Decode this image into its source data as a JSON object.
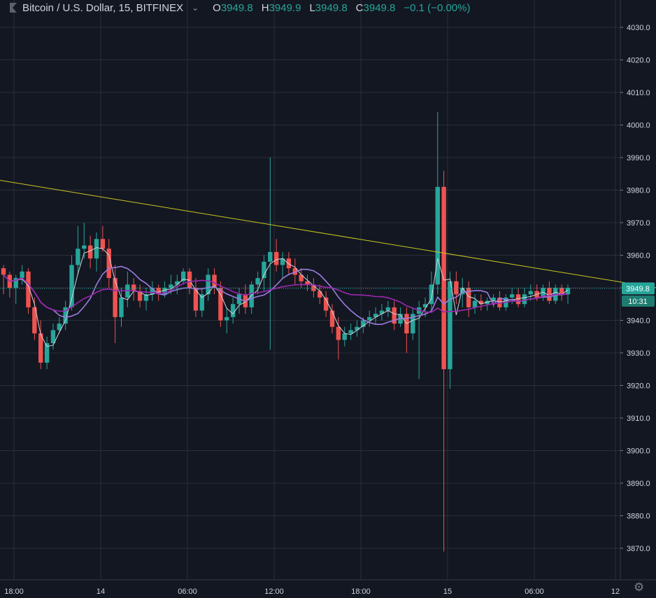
{
  "header": {
    "symbol_title": "Bitcoin / U.S. Dollar, 15, BITFINEX",
    "open_key": "O",
    "open": "3949.8",
    "high_key": "H",
    "high": "3949.9",
    "low_key": "L",
    "low": "3949.8",
    "close_key": "C",
    "close": "3949.8",
    "change": "−0.1 (−0.00%)"
  },
  "icons": {
    "symbol_flag": "flag-icon",
    "menu": "chevron-down-icon",
    "settings": "gear-icon"
  },
  "colors": {
    "background": "#131722",
    "grid": "#2a2e39",
    "up": "#26a69a",
    "down": "#ef5350",
    "ma_fast": "#d1d4dc",
    "ma_mid": "#9c7be0",
    "ma_slow": "#9c27b0",
    "trendline": "#c8c81e",
    "price_line": "#26a69a"
  },
  "chart_data": {
    "type": "candlestick",
    "title": "Bitcoin / U.S. Dollar, 15, BITFINEX",
    "ylim": [
      3863,
      4037
    ],
    "y_ticks": [
      "4030.0",
      "4020.0",
      "4010.0",
      "4000.0",
      "3990.0",
      "3980.0",
      "3970.0",
      "3960.0",
      "3950.0",
      "3940.0",
      "3930.0",
      "3920.0",
      "3910.0",
      "3900.0",
      "3890.0",
      "3880.0",
      "3870.0"
    ],
    "x_labels": [
      "18:00",
      "14",
      "06:00",
      "12:00",
      "18:00",
      "15",
      "06:00",
      "12"
    ],
    "last_price": "3949.8",
    "countdown": "10:31",
    "trendline": {
      "start": [
        0,
        3983
      ],
      "end": [
        938,
        3950
      ]
    },
    "candles": [
      [
        3956,
        3957,
        3948,
        3954
      ],
      [
        3954,
        3955,
        3947,
        3950
      ],
      [
        3950,
        3954,
        3945,
        3953
      ],
      [
        3953,
        3957,
        3951,
        3955
      ],
      [
        3955,
        3956,
        3942,
        3944
      ],
      [
        3944,
        3947,
        3934,
        3936
      ],
      [
        3936,
        3940,
        3925,
        3927
      ],
      [
        3927,
        3935,
        3925,
        3933
      ],
      [
        3933,
        3939,
        3931,
        3937
      ],
      [
        3937,
        3941,
        3936,
        3939
      ],
      [
        3939,
        3946,
        3937,
        3944
      ],
      [
        3944,
        3960,
        3943,
        3957
      ],
      [
        3957,
        3969,
        3954,
        3962
      ],
      [
        3962,
        3970,
        3959,
        3963
      ],
      [
        3963,
        3966,
        3956,
        3959
      ],
      [
        3959,
        3967,
        3955,
        3965
      ],
      [
        3965,
        3969,
        3961,
        3962
      ],
      [
        3962,
        3965,
        3950,
        3953
      ],
      [
        3953,
        3957,
        3933,
        3941
      ],
      [
        3941,
        3950,
        3938,
        3947
      ],
      [
        3947,
        3955,
        3944,
        3951
      ],
      [
        3951,
        3953,
        3946,
        3949
      ],
      [
        3949,
        3951,
        3944,
        3946
      ],
      [
        3946,
        3950,
        3943,
        3948
      ],
      [
        3948,
        3952,
        3946,
        3950
      ],
      [
        3950,
        3951,
        3946,
        3948
      ],
      [
        3948,
        3952,
        3947,
        3950
      ],
      [
        3950,
        3954,
        3948,
        3951
      ],
      [
        3951,
        3954,
        3948,
        3952
      ],
      [
        3952,
        3956,
        3951,
        3955
      ],
      [
        3955,
        3956,
        3948,
        3950
      ],
      [
        3950,
        3953,
        3941,
        3943
      ],
      [
        3943,
        3950,
        3941,
        3948
      ],
      [
        3948,
        3956,
        3946,
        3954
      ],
      [
        3954,
        3956,
        3948,
        3950
      ],
      [
        3950,
        3952,
        3938,
        3940
      ],
      [
        3940,
        3944,
        3936,
        3941
      ],
      [
        3941,
        3947,
        3939,
        3945
      ],
      [
        3945,
        3950,
        3942,
        3948
      ],
      [
        3948,
        3951,
        3942,
        3944
      ],
      [
        3944,
        3952,
        3942,
        3951
      ],
      [
        3951,
        3955,
        3948,
        3953
      ],
      [
        3953,
        3960,
        3949,
        3958
      ],
      [
        3958,
        3990,
        3931,
        3961
      ],
      [
        3961,
        3965,
        3955,
        3957
      ],
      [
        3957,
        3961,
        3953,
        3959
      ],
      [
        3959,
        3961,
        3954,
        3956
      ],
      [
        3956,
        3959,
        3951,
        3954
      ],
      [
        3954,
        3956,
        3950,
        3952
      ],
      [
        3952,
        3954,
        3949,
        3951
      ],
      [
        3951,
        3953,
        3947,
        3949
      ],
      [
        3949,
        3951,
        3945,
        3947
      ],
      [
        3947,
        3949,
        3941,
        3943
      ],
      [
        3943,
        3945,
        3936,
        3938
      ],
      [
        3938,
        3941,
        3928,
        3934
      ],
      [
        3934,
        3938,
        3932,
        3936
      ],
      [
        3936,
        3939,
        3934,
        3937
      ],
      [
        3937,
        3940,
        3935,
        3938
      ],
      [
        3938,
        3941,
        3936,
        3940
      ],
      [
        3940,
        3943,
        3938,
        3941
      ],
      [
        3941,
        3944,
        3939,
        3942
      ],
      [
        3942,
        3945,
        3940,
        3943
      ],
      [
        3943,
        3946,
        3941,
        3944
      ],
      [
        3944,
        3946,
        3937,
        3939
      ],
      [
        3939,
        3944,
        3938,
        3942
      ],
      [
        3942,
        3944,
        3930,
        3936
      ],
      [
        3936,
        3944,
        3934,
        3942
      ],
      [
        3942,
        3946,
        3922,
        3944
      ],
      [
        3944,
        3947,
        3941,
        3945
      ],
      [
        3945,
        3955,
        3943,
        3951
      ],
      [
        3951,
        4004,
        3948,
        3981
      ],
      [
        3981,
        3986,
        3869,
        3925
      ],
      [
        3925,
        3955,
        3919,
        3952
      ],
      [
        3952,
        3955,
        3945,
        3948
      ],
      [
        3948,
        3953,
        3944,
        3950
      ],
      [
        3950,
        3952,
        3941,
        3944
      ],
      [
        3944,
        3948,
        3942,
        3946
      ],
      [
        3946,
        3948,
        3943,
        3945
      ],
      [
        3945,
        3947,
        3943,
        3946
      ],
      [
        3946,
        3948,
        3944,
        3947
      ],
      [
        3947,
        3949,
        3943,
        3944
      ],
      [
        3944,
        3948,
        3943,
        3947
      ],
      [
        3947,
        3950,
        3945,
        3948
      ],
      [
        3948,
        3950,
        3944,
        3945
      ],
      [
        3945,
        3950,
        3944,
        3948
      ],
      [
        3948,
        3951,
        3946,
        3949
      ],
      [
        3949,
        3951,
        3946,
        3947
      ],
      [
        3947,
        3951,
        3946,
        3950
      ],
      [
        3950,
        3952,
        3945,
        3946
      ],
      [
        3946,
        3951,
        3945,
        3950
      ],
      [
        3950,
        3951,
        3946,
        3948
      ],
      [
        3948,
        3951,
        3945,
        3950
      ]
    ]
  }
}
